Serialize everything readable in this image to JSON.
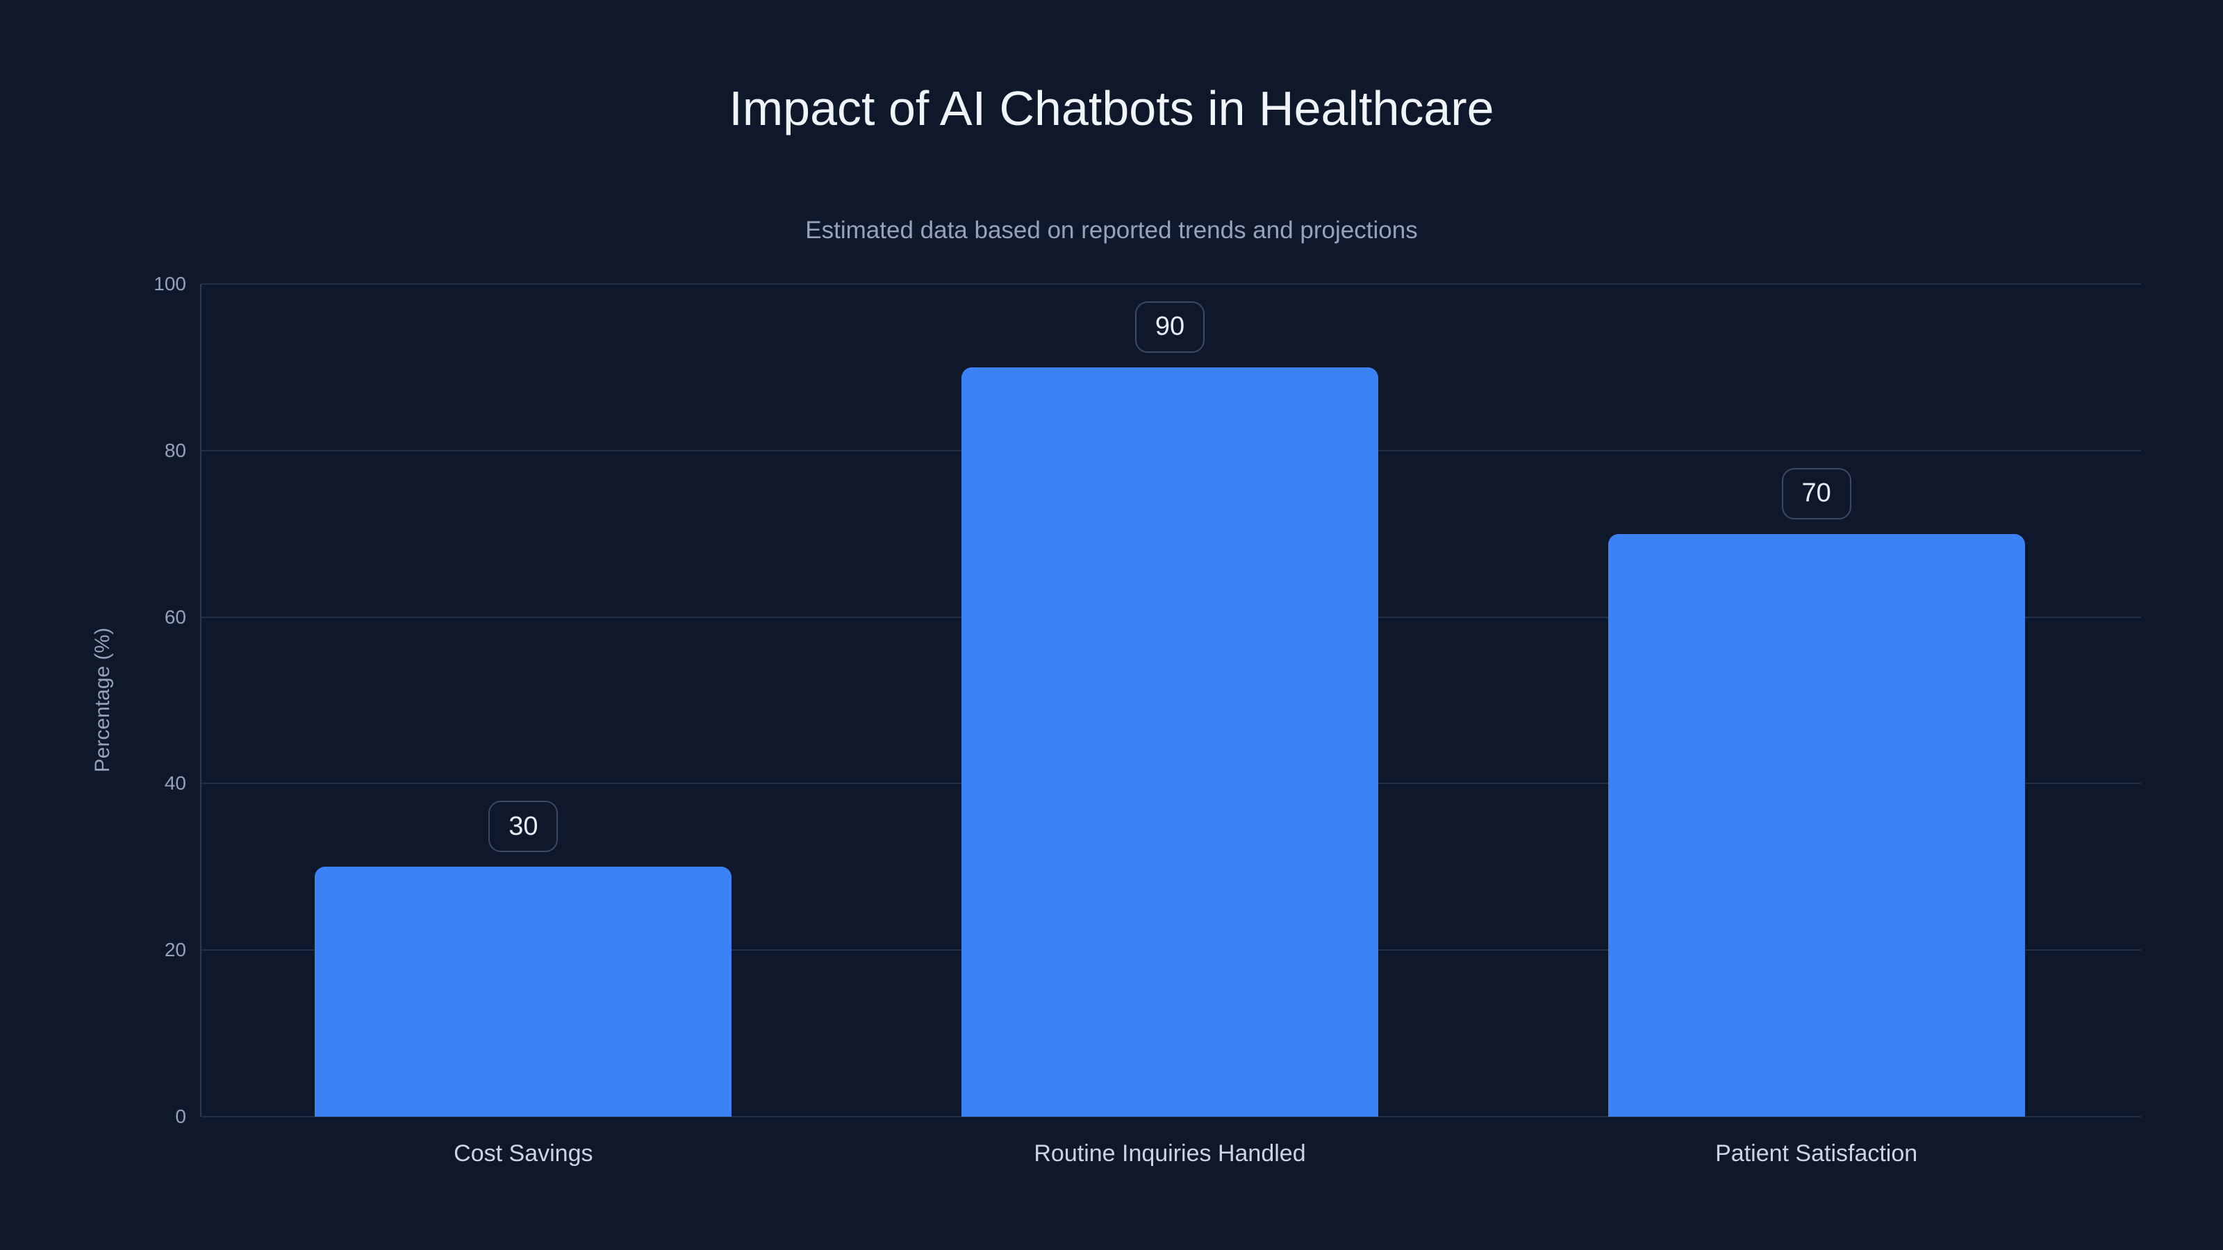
{
  "page": {
    "background_color": "#0f172a"
  },
  "chart_data": {
    "type": "bar",
    "title": "Impact of AI Chatbots in Healthcare",
    "subtitle": "Estimated data based on reported trends and projections",
    "categories": [
      "Cost Savings",
      "Routine Inquiries Handled",
      "Patient Satisfaction"
    ],
    "values": [
      30,
      90,
      70
    ],
    "value_labels": [
      "30",
      "90",
      "70"
    ],
    "xlabel": "",
    "ylabel": "Percentage (%)",
    "ylim": [
      0,
      100
    ],
    "yticks": [
      0,
      20,
      40,
      60,
      80,
      100
    ],
    "grid": true,
    "legend": false,
    "colors": {
      "bar": "#3b82f6",
      "background": "#0f172a",
      "gridline": "#223048",
      "axis_line": "#2c3950",
      "title_text": "#f1f5f9",
      "subtitle_text": "#94a3b8",
      "tick_text": "#94a3b8",
      "category_text": "#cbd5e1",
      "badge_border": "#3d4960",
      "badge_text": "#e9eef6"
    }
  }
}
